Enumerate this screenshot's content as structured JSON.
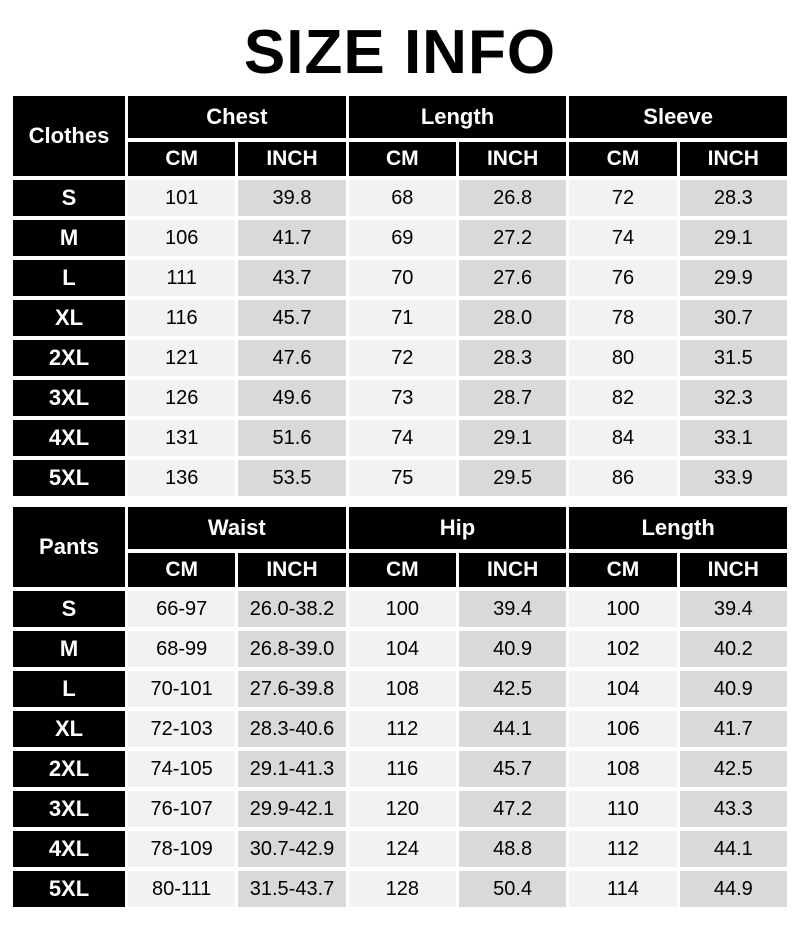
{
  "title": "SIZE INFO",
  "colors": {
    "page_background": "#ffffff",
    "header_cell_background": "#000000",
    "header_cell_text": "#ffffff",
    "cm_cell_background": "#f2f2f2",
    "inch_cell_background": "#d9d9d9",
    "value_text": "#000000",
    "title_text": "#000000"
  },
  "chart_data": [
    {
      "type": "table",
      "title": "Clothes",
      "column_groups": [
        {
          "label": "Chest",
          "columns": [
            "CM",
            "INCH"
          ]
        },
        {
          "label": "Length",
          "columns": [
            "CM",
            "INCH"
          ]
        },
        {
          "label": "Sleeve",
          "columns": [
            "CM",
            "INCH"
          ]
        }
      ],
      "rows": [
        {
          "size": "S",
          "values": [
            "101",
            "39.8",
            "68",
            "26.8",
            "72",
            "28.3"
          ]
        },
        {
          "size": "M",
          "values": [
            "106",
            "41.7",
            "69",
            "27.2",
            "74",
            "29.1"
          ]
        },
        {
          "size": "L",
          "values": [
            "111",
            "43.7",
            "70",
            "27.6",
            "76",
            "29.9"
          ]
        },
        {
          "size": "XL",
          "values": [
            "116",
            "45.7",
            "71",
            "28.0",
            "78",
            "30.7"
          ]
        },
        {
          "size": "2XL",
          "values": [
            "121",
            "47.6",
            "72",
            "28.3",
            "80",
            "31.5"
          ]
        },
        {
          "size": "3XL",
          "values": [
            "126",
            "49.6",
            "73",
            "28.7",
            "82",
            "32.3"
          ]
        },
        {
          "size": "4XL",
          "values": [
            "131",
            "51.6",
            "74",
            "29.1",
            "84",
            "33.1"
          ]
        },
        {
          "size": "5XL",
          "values": [
            "136",
            "53.5",
            "75",
            "29.5",
            "86",
            "33.9"
          ]
        }
      ]
    },
    {
      "type": "table",
      "title": "Pants",
      "column_groups": [
        {
          "label": "Waist",
          "columns": [
            "CM",
            "INCH"
          ]
        },
        {
          "label": "Hip",
          "columns": [
            "CM",
            "INCH"
          ]
        },
        {
          "label": "Length",
          "columns": [
            "CM",
            "INCH"
          ]
        }
      ],
      "rows": [
        {
          "size": "S",
          "values": [
            "66-97",
            "26.0-38.2",
            "100",
            "39.4",
            "100",
            "39.4"
          ]
        },
        {
          "size": "M",
          "values": [
            "68-99",
            "26.8-39.0",
            "104",
            "40.9",
            "102",
            "40.2"
          ]
        },
        {
          "size": "L",
          "values": [
            "70-101",
            "27.6-39.8",
            "108",
            "42.5",
            "104",
            "40.9"
          ]
        },
        {
          "size": "XL",
          "values": [
            "72-103",
            "28.3-40.6",
            "112",
            "44.1",
            "106",
            "41.7"
          ]
        },
        {
          "size": "2XL",
          "values": [
            "74-105",
            "29.1-41.3",
            "116",
            "45.7",
            "108",
            "42.5"
          ]
        },
        {
          "size": "3XL",
          "values": [
            "76-107",
            "29.9-42.1",
            "120",
            "47.2",
            "110",
            "43.3"
          ]
        },
        {
          "size": "4XL",
          "values": [
            "78-109",
            "30.7-42.9",
            "124",
            "48.8",
            "112",
            "44.1"
          ]
        },
        {
          "size": "5XL",
          "values": [
            "80-111",
            "31.5-43.7",
            "128",
            "50.4",
            "114",
            "44.9"
          ]
        }
      ]
    }
  ]
}
